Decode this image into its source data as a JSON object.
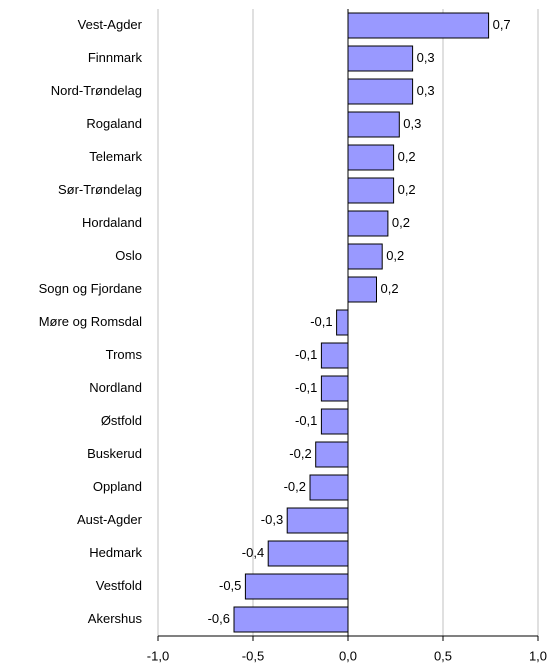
{
  "chart_data": {
    "type": "hbar",
    "categories": [
      "Vest-Agder",
      "Finnmark",
      "Nord-Trøndelag",
      "Rogaland",
      "Telemark",
      "Sør-Trøndelag",
      "Hordaland",
      "Oslo",
      "Sogn og Fjordane",
      "Møre og Romsdal",
      "Troms",
      "Nordland",
      "Østfold",
      "Buskerud",
      "Oppland",
      "Aust-Agder",
      "Hedmark",
      "Vestfold",
      "Akershus"
    ],
    "values": [
      0.74,
      0.34,
      0.34,
      0.27,
      0.24,
      0.24,
      0.21,
      0.18,
      0.15,
      -0.06,
      -0.14,
      -0.14,
      -0.14,
      -0.17,
      -0.2,
      -0.32,
      -0.42,
      -0.54,
      -0.6
    ],
    "value_labels": [
      "0,7",
      "0,3",
      "0,3",
      "0,3",
      "0,2",
      "0,2",
      "0,2",
      "0,2",
      "0,2",
      "-0,1",
      "-0,1",
      "-0,1",
      "-0,1",
      "-0,2",
      "-0,2",
      "-0,3",
      "-0,4",
      "-0,5",
      "-0,6"
    ],
    "color": "#9999ff",
    "xlim": [
      -1,
      1
    ],
    "xticks": [
      {
        "value": -1,
        "label": "-1,0"
      },
      {
        "value": -0.5,
        "label": "-0,5"
      },
      {
        "value": 0,
        "label": "0,0"
      },
      {
        "value": 0.5,
        "label": "0,5"
      },
      {
        "value": 1,
        "label": "1,0"
      }
    ],
    "grid": true
  }
}
